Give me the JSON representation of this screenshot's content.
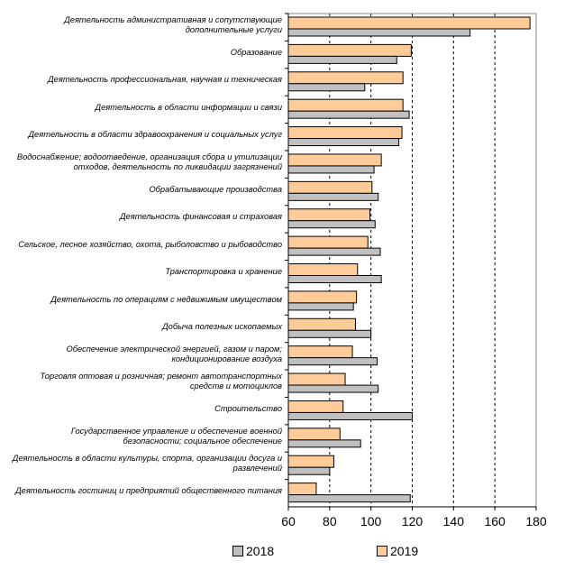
{
  "chart_data": {
    "type": "bar",
    "orientation": "horizontal",
    "categories": [
      "Деятельность административная и сопутствующие дополнительные услуги",
      "Образование",
      "Деятельность профессиональная, научная и техническая",
      "Деятельность в области информации и связи",
      "Деятельность в области здравоохранения и социальных услуг",
      "Водоснабжение; водоотведение, организация сбора и утилизации отходов, деятельность по ликвидации загрязнений",
      "Обрабатывающие производства",
      "Деятельность финансовая и страховая",
      "Сельское, лесное хозяйство, охота, рыболовство и рыбоводство",
      "Транспортировка и хранение",
      "Деятельность по операциям с недвижимым имуществом",
      "Добыча полезных ископаемых",
      "Обеспечение электрической энергией, газом и паром; кондиционирование воздуха",
      "Торговля оптовая и розничная; ремонт автотранспортных средств и мотоциклов",
      "Строительство",
      "Государственное управление и обеспечение военной безопасности; социальное обеспечение",
      "Деятельность в области культуры, спорта, организации досуга и развлечений",
      "Деятельность гостиниц и предприятий общественного питания"
    ],
    "series": [
      {
        "name": "2019",
        "color": "#FFCC99",
        "values": [
          177,
          119.5,
          115.5,
          115.5,
          115,
          105,
          100.5,
          99.5,
          98.5,
          93.5,
          93,
          92.5,
          91,
          87.5,
          86.5,
          85,
          82,
          73.5
        ]
      },
      {
        "name": "2018",
        "color": "#C0C0C0",
        "values": [
          148,
          112.5,
          97,
          118.5,
          113.5,
          101.5,
          103.5,
          102,
          104.5,
          105,
          91.5,
          100,
          103,
          103.5,
          120,
          95,
          80,
          119
        ]
      }
    ],
    "xlim": [
      60,
      180
    ],
    "xticks": [
      "60",
      "80",
      "100",
      "120",
      "140",
      "160",
      "180"
    ],
    "grid": "vertical dashed",
    "legend": "bottom",
    "legend_entries": [
      "2018",
      "2019"
    ],
    "title": "",
    "xlabel": "",
    "ylabel": ""
  }
}
